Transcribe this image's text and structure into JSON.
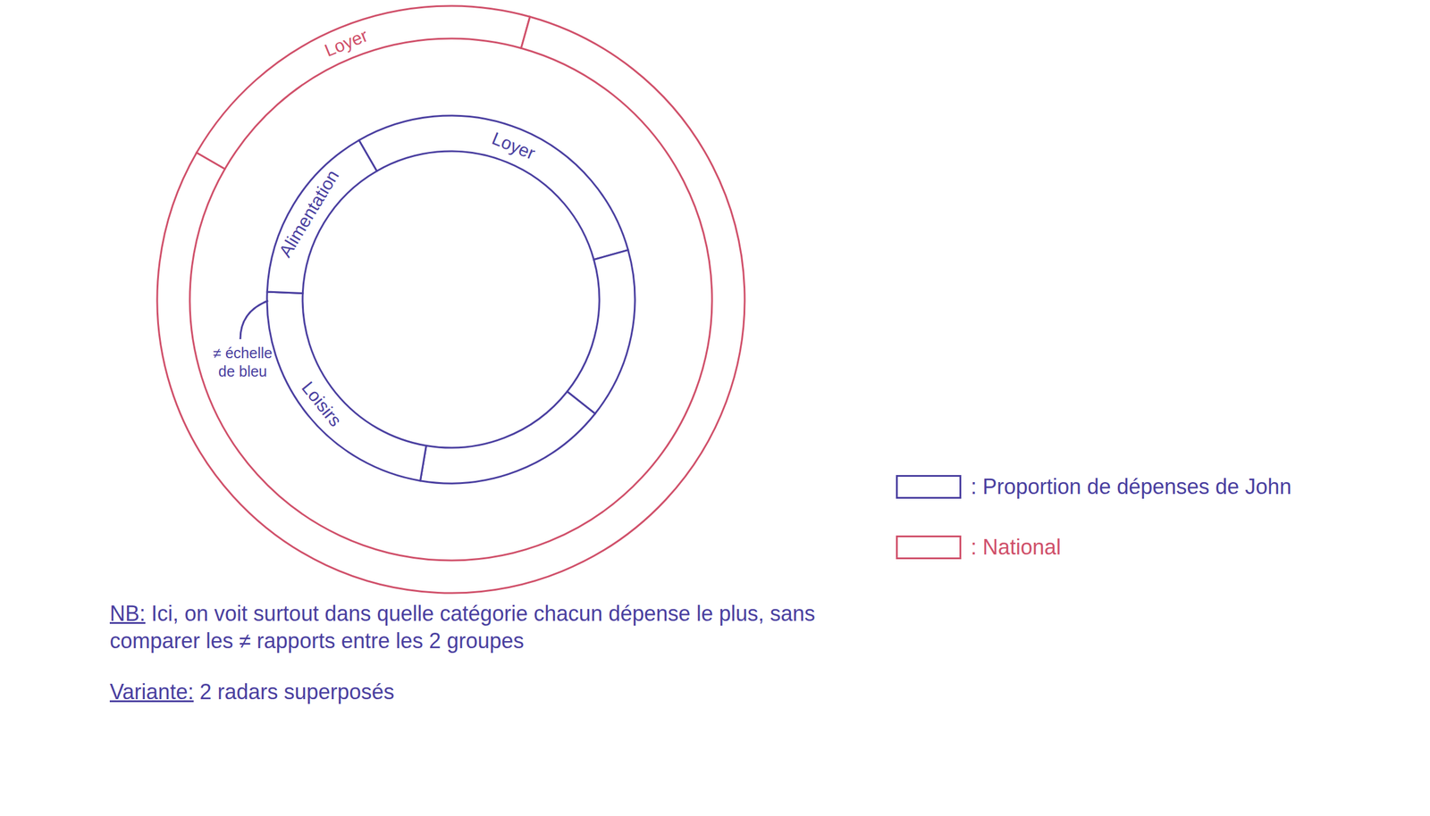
{
  "chart_data": {
    "type": "donut",
    "series": [
      {
        "name": "Proportion de dépenses de John",
        "color": "#4a3fa0",
        "categories": [
          "Loyer",
          null,
          null,
          "Loisirs",
          "Alimentation"
        ],
        "values": [
          29,
          15,
          17,
          23,
          16
        ]
      },
      {
        "name": "National",
        "color": "#d0506a",
        "categories": [
          "Loyer",
          null
        ],
        "values": [
          21,
          79
        ]
      }
    ],
    "legend": "right",
    "annotations": [
      {
        "text": "≠ échelle de bleu"
      }
    ],
    "notes": [
      {
        "label": "NB:",
        "text": "Ici, on voit surtout dans quelle catégorie chacun dépense le plus, sans comparer les ≠ rapports entre les 2 groupes"
      },
      {
        "label": "Variante:",
        "text": "2 radars superposés"
      }
    ]
  }
}
